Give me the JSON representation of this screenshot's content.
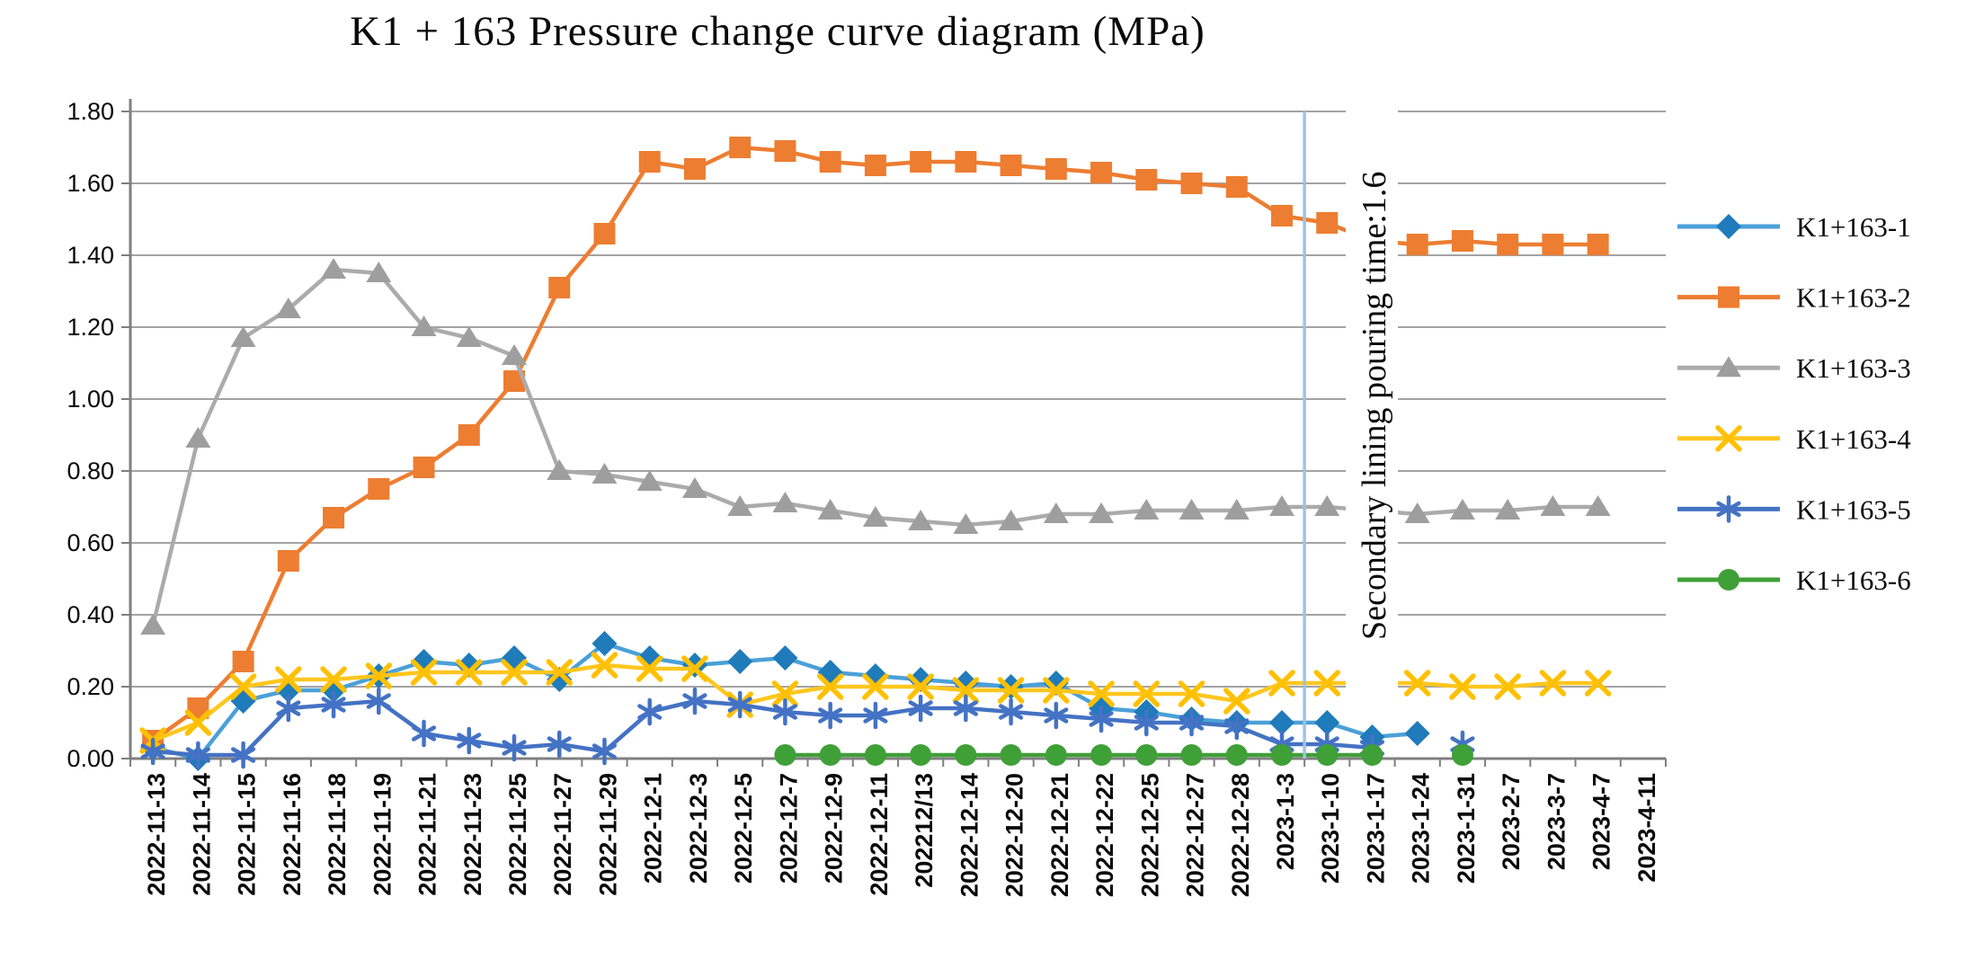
{
  "title": "K1 + 163 Pressure change curve diagram (MPa)",
  "annotation": {
    "text": "Secondary lining pouring time:1.6",
    "value_marked": "1.6",
    "line_color": "#9DC3E6",
    "line_between": [
      "2023-1-3",
      "2023-1-10"
    ]
  },
  "axes": {
    "y_ticks": [
      "0.00",
      "0.20",
      "0.40",
      "0.60",
      "0.80",
      "1.00",
      "1.20",
      "1.40",
      "1.60",
      "1.80"
    ],
    "y_min": 0,
    "y_max": 1.8
  },
  "legend": [
    "K1+163-1",
    "K1+163-2",
    "K1+163-3",
    "K1+163-4",
    "K1+163-5",
    "K1+163-6"
  ],
  "chart_data": {
    "type": "line",
    "title": "K1 + 163 Pressure change curve diagram (MPa)",
    "xlabel": "",
    "ylabel": "",
    "ylim": [
      0,
      1.8
    ],
    "ytick_step": 0.2,
    "grid": true,
    "legend_position": "right",
    "categories": [
      "2022-11-13",
      "2022-11-14",
      "2022-11-15",
      "2022-11-16",
      "2022-11-18",
      "2022-11-19",
      "2022-11-21",
      "2022-11-23",
      "2022-11-25",
      "2022-11-27",
      "2022-11-29",
      "2022-12-1",
      "2022-12-3",
      "2022-12-5",
      "2022-12-7",
      "2022-12-9",
      "2022-12-11",
      "202212/13",
      "2022-12-14",
      "2022-12-20",
      "2022-12-21",
      "2022-12-22",
      "2022-12-25",
      "2022-12-27",
      "2022-12-28",
      "2023-1-3",
      "2023-1-10",
      "2023-1-17",
      "2023-1-24",
      "2023-1-31",
      "2023-2-7",
      "2023-3-7",
      "2023-4-7",
      "2023-4-11"
    ],
    "series": [
      {
        "name": "K1+163-1",
        "marker": "diamond",
        "line_color": "#4BA0D8",
        "color": "#1F7BB9",
        "values": [
          0.03,
          0.0,
          0.16,
          0.19,
          0.19,
          0.23,
          0.27,
          0.26,
          0.28,
          0.22,
          0.32,
          0.28,
          0.26,
          0.27,
          0.28,
          0.24,
          0.23,
          0.22,
          0.21,
          0.2,
          0.21,
          0.14,
          0.13,
          0.11,
          0.1,
          0.1,
          0.1,
          0.06,
          0.07,
          null,
          null,
          null,
          null,
          null
        ]
      },
      {
        "name": "K1+163-2",
        "marker": "square",
        "line_color": "#ED7D31",
        "color": "#ED7D31",
        "values": [
          0.05,
          0.14,
          0.27,
          0.55,
          0.67,
          0.75,
          0.81,
          0.9,
          1.05,
          1.31,
          1.46,
          1.66,
          1.64,
          1.7,
          1.69,
          1.66,
          1.65,
          1.66,
          1.66,
          1.65,
          1.64,
          1.63,
          1.61,
          1.6,
          1.59,
          1.51,
          1.49,
          1.44,
          1.43,
          1.44,
          1.43,
          1.43,
          1.43,
          null
        ]
      },
      {
        "name": "K1+163-3",
        "marker": "triangle",
        "line_color": "#ABABAB",
        "color": "#9E9E9E",
        "values": [
          0.37,
          0.89,
          1.17,
          1.25,
          1.36,
          1.35,
          1.2,
          1.17,
          1.12,
          0.8,
          0.79,
          0.77,
          0.75,
          0.7,
          0.71,
          0.69,
          0.67,
          0.66,
          0.65,
          0.66,
          0.68,
          0.68,
          0.69,
          0.69,
          0.69,
          0.7,
          0.7,
          0.69,
          0.68,
          0.69,
          0.69,
          0.7,
          0.7,
          null
        ]
      },
      {
        "name": "K1+163-4",
        "marker": "xmark",
        "line_color": "#FFC61E",
        "color": "#FFC000",
        "values": [
          0.05,
          0.1,
          0.2,
          0.22,
          0.22,
          0.23,
          0.24,
          0.24,
          0.24,
          0.24,
          0.26,
          0.25,
          0.25,
          0.15,
          0.18,
          0.2,
          0.2,
          0.2,
          0.19,
          0.19,
          0.19,
          0.18,
          0.18,
          0.18,
          0.16,
          0.21,
          0.21,
          0.21,
          0.21,
          0.2,
          0.2,
          0.21,
          0.21,
          null
        ]
      },
      {
        "name": "K1+163-5",
        "marker": "asterisk",
        "line_color": "#4472C4",
        "color": "#4472C4",
        "values": [
          0.02,
          0.01,
          0.01,
          0.14,
          0.15,
          0.16,
          0.07,
          0.05,
          0.03,
          0.04,
          0.02,
          0.13,
          0.16,
          0.15,
          0.13,
          0.12,
          0.12,
          0.14,
          0.14,
          0.13,
          0.12,
          0.11,
          0.1,
          0.1,
          0.09,
          0.04,
          0.04,
          0.03,
          null,
          0.04,
          null,
          null,
          null,
          null
        ]
      },
      {
        "name": "K1+163-6",
        "marker": "circle",
        "line_color": "#3FA037",
        "color": "#3FA037",
        "values": [
          null,
          null,
          null,
          null,
          null,
          null,
          null,
          null,
          null,
          null,
          null,
          null,
          null,
          null,
          0.01,
          0.01,
          0.01,
          0.01,
          0.01,
          0.01,
          0.01,
          0.01,
          0.01,
          0.01,
          0.01,
          0.01,
          0.01,
          0.01,
          null,
          0.01,
          null,
          null,
          null,
          null
        ]
      }
    ]
  },
  "colors": {
    "grid": "#A3A3A3",
    "axis": "#7F7F7F",
    "text": "#0a0a0a",
    "background": "#ffffff"
  }
}
